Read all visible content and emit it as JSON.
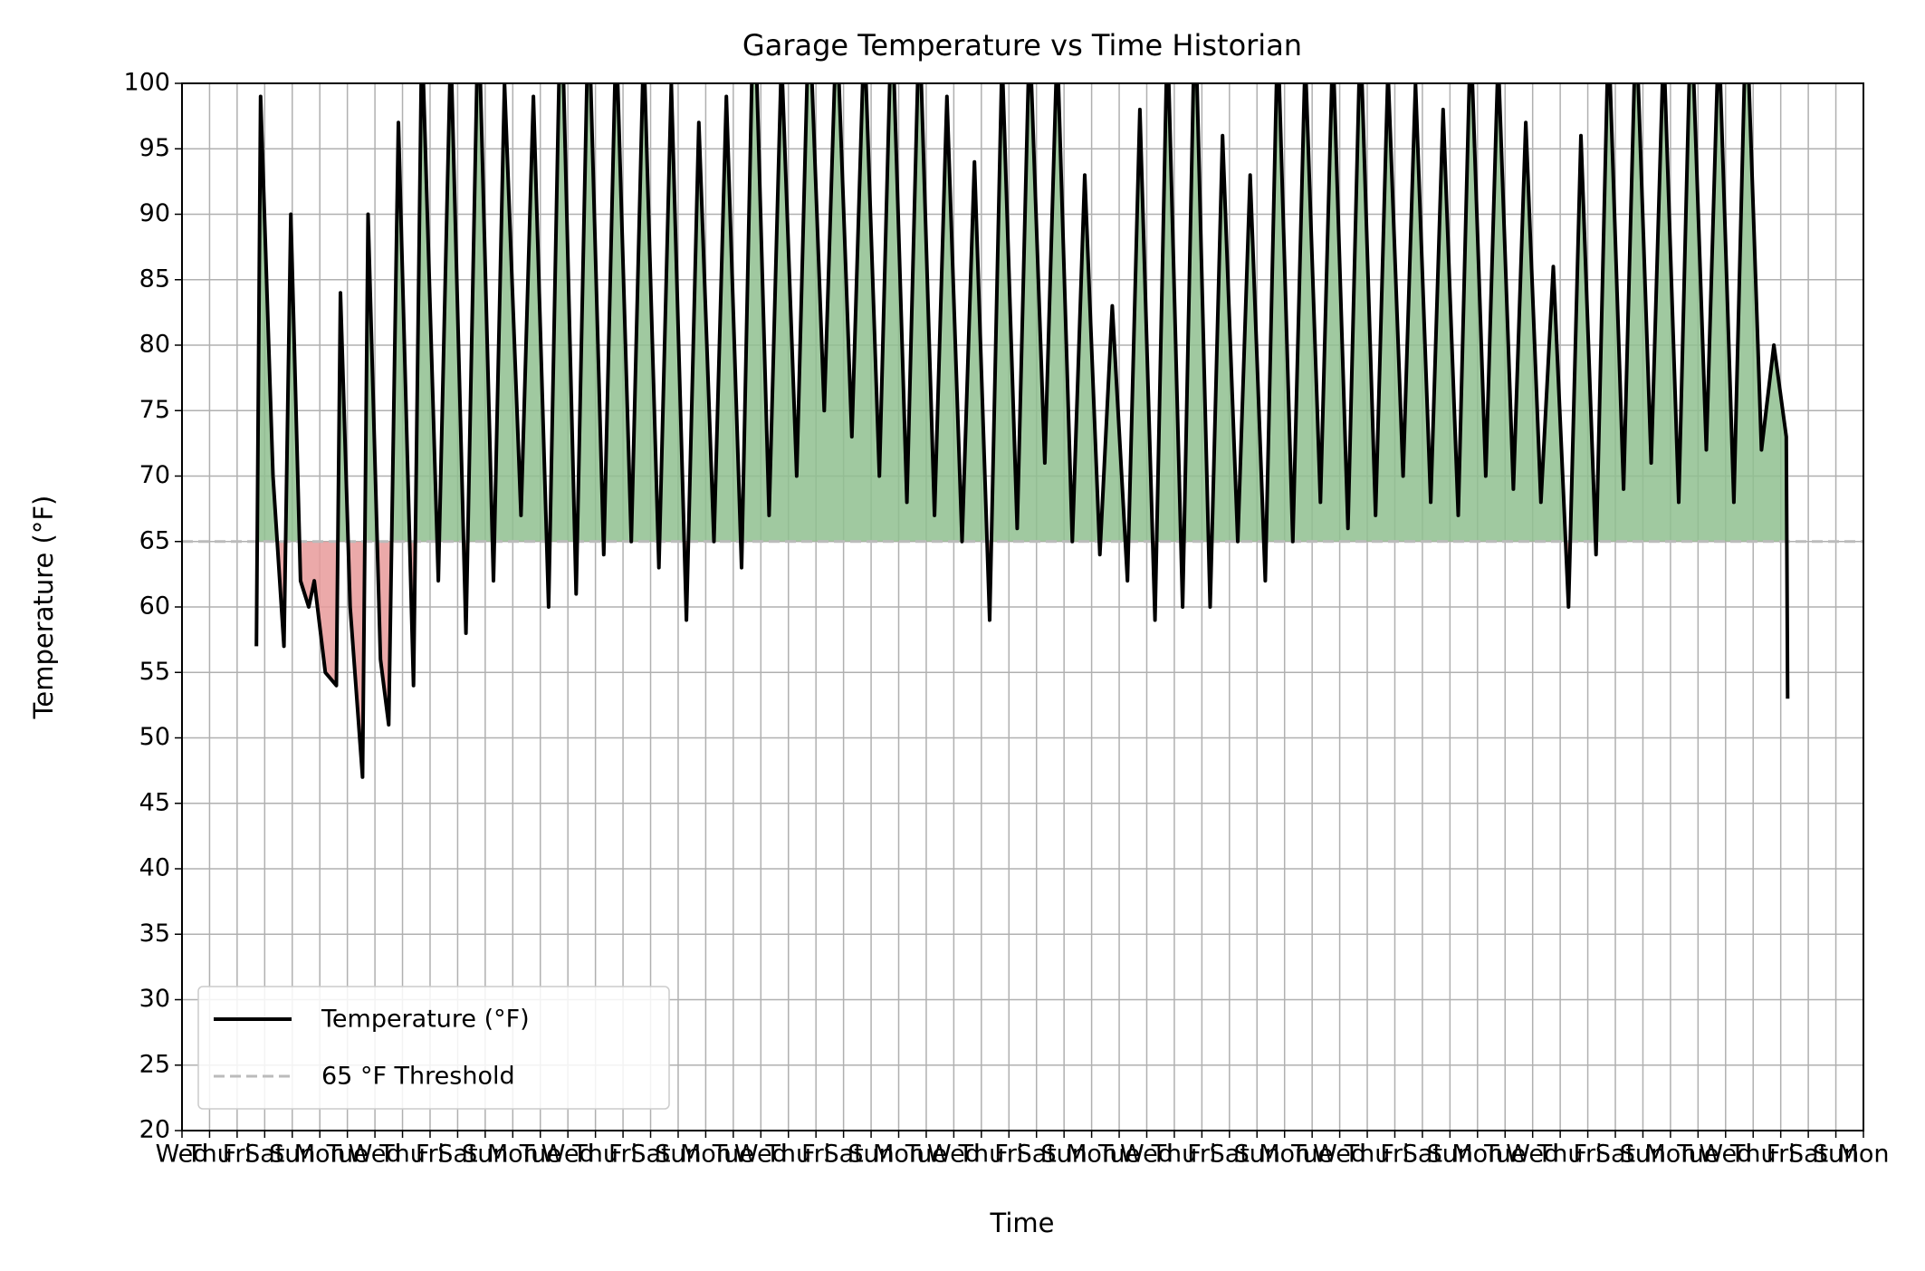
{
  "chart_data": {
    "type": "line",
    "title": "Garage Temperature vs Time Historian",
    "x_label": "Time",
    "y_label": "Temperature (°F)",
    "xlim": [
      0,
      61
    ],
    "xticks": [
      {
        "value": 0,
        "label": "Wed"
      },
      {
        "value": 1,
        "label": "Thu"
      },
      {
        "value": 2,
        "label": "Fri"
      },
      {
        "value": 3,
        "label": "Sat"
      },
      {
        "value": 4,
        "label": "Sun"
      },
      {
        "value": 5,
        "label": "Mon"
      },
      {
        "value": 6,
        "label": "Tue"
      },
      {
        "value": 7,
        "label": "Wed"
      },
      {
        "value": 8,
        "label": "Thu"
      },
      {
        "value": 9,
        "label": "Fri"
      },
      {
        "value": 10,
        "label": "Sat"
      },
      {
        "value": 11,
        "label": "Sun"
      },
      {
        "value": 12,
        "label": "Mon"
      },
      {
        "value": 13,
        "label": "Tue"
      },
      {
        "value": 14,
        "label": "Wed"
      },
      {
        "value": 15,
        "label": "Thu"
      },
      {
        "value": 16,
        "label": "Fri"
      },
      {
        "value": 17,
        "label": "Sat"
      },
      {
        "value": 18,
        "label": "Sun"
      },
      {
        "value": 19,
        "label": "Mon"
      },
      {
        "value": 20,
        "label": "Tue"
      },
      {
        "value": 21,
        "label": "Wed"
      },
      {
        "value": 22,
        "label": "Thu"
      },
      {
        "value": 23,
        "label": "Fri"
      },
      {
        "value": 24,
        "label": "Sat"
      },
      {
        "value": 25,
        "label": "Sun"
      },
      {
        "value": 26,
        "label": "Mon"
      },
      {
        "value": 27,
        "label": "Tue"
      },
      {
        "value": 28,
        "label": "Wed"
      },
      {
        "value": 29,
        "label": "Thu"
      },
      {
        "value": 30,
        "label": "Fri"
      },
      {
        "value": 31,
        "label": "Sat"
      },
      {
        "value": 32,
        "label": "Sun"
      },
      {
        "value": 33,
        "label": "Mon"
      },
      {
        "value": 34,
        "label": "Tue"
      },
      {
        "value": 35,
        "label": "Wed"
      },
      {
        "value": 36,
        "label": "Thu"
      },
      {
        "value": 37,
        "label": "Fri"
      },
      {
        "value": 38,
        "label": "Sat"
      },
      {
        "value": 39,
        "label": "Sun"
      },
      {
        "value": 40,
        "label": "Mon"
      },
      {
        "value": 41,
        "label": "Tue"
      },
      {
        "value": 42,
        "label": "Wed"
      },
      {
        "value": 43,
        "label": "Thu"
      },
      {
        "value": 44,
        "label": "Fri"
      },
      {
        "value": 45,
        "label": "Sat"
      },
      {
        "value": 46,
        "label": "Sun"
      },
      {
        "value": 47,
        "label": "Mon"
      },
      {
        "value": 48,
        "label": "Tue"
      },
      {
        "value": 49,
        "label": "Wed"
      },
      {
        "value": 50,
        "label": "Thu"
      },
      {
        "value": 51,
        "label": "Fri"
      },
      {
        "value": 52,
        "label": "Sat"
      },
      {
        "value": 53,
        "label": "Sun"
      },
      {
        "value": 54,
        "label": "Mon"
      },
      {
        "value": 55,
        "label": "Tue"
      },
      {
        "value": 56,
        "label": "Wed"
      },
      {
        "value": 57,
        "label": "Thu"
      },
      {
        "value": 58,
        "label": "Fri"
      },
      {
        "value": 59,
        "label": "Sat"
      },
      {
        "value": 60,
        "label": "Sun"
      },
      {
        "value": 61,
        "label": "Mon"
      }
    ],
    "ylim": [
      20,
      100
    ],
    "yticks": [
      20,
      25,
      30,
      35,
      40,
      45,
      50,
      55,
      60,
      65,
      70,
      75,
      80,
      85,
      90,
      95,
      100
    ],
    "grid": true,
    "legend": "lower left",
    "threshold": 65,
    "threshold_name": "65 °F Threshold",
    "threshold_color": "#bbbbbb",
    "above_color": "#8fbf8f",
    "below_color": "#e89a9a",
    "series": [
      {
        "name": "Temperature (°F)",
        "color": "#000000",
        "x": [
          2.7,
          2.85,
          3.3,
          3.7,
          3.95,
          4.3,
          4.6,
          4.8,
          5.2,
          5.6,
          5.75,
          6.1,
          6.55,
          6.75,
          7.2,
          7.5,
          7.85,
          8.4,
          8.7,
          9.3,
          9.75,
          10.3,
          10.75,
          11.3,
          11.7,
          12.3,
          12.75,
          13.3,
          13.75,
          14.3,
          14.75,
          15.3,
          15.75,
          16.3,
          16.75,
          17.3,
          17.75,
          18.3,
          18.75,
          19.3,
          19.75,
          20.3,
          20.75,
          21.3,
          21.75,
          22.3,
          22.75,
          23.3,
          23.75,
          24.3,
          24.75,
          25.3,
          25.75,
          26.3,
          26.75,
          27.3,
          27.75,
          28.3,
          28.75,
          29.3,
          29.75,
          30.3,
          30.75,
          31.3,
          31.75,
          32.3,
          32.75,
          33.3,
          33.75,
          34.3,
          34.75,
          35.3,
          35.75,
          36.3,
          36.75,
          37.3,
          37.75,
          38.3,
          38.75,
          39.3,
          39.75,
          40.3,
          40.75,
          41.3,
          41.75,
          42.3,
          42.75,
          43.3,
          43.75,
          44.3,
          44.75,
          45.3,
          45.75,
          46.3,
          46.75,
          47.3,
          47.75,
          48.3,
          48.75,
          49.3,
          49.75,
          50.3,
          50.75,
          51.3,
          51.75,
          52.3,
          52.75,
          53.3,
          53.75,
          54.3,
          54.75,
          55.3,
          55.75,
          56.3,
          56.75,
          57.3,
          57.75,
          58.2,
          58.25
        ],
        "values": [
          57,
          99,
          70,
          57,
          90,
          62,
          60,
          62,
          55,
          54,
          84,
          60,
          47,
          90,
          56,
          51,
          97,
          54,
          104,
          62,
          103,
          58,
          106,
          62,
          100,
          67,
          99,
          60,
          108,
          61,
          106,
          64,
          104,
          65,
          103,
          63,
          100,
          59,
          97,
          65,
          99,
          63,
          108,
          67,
          102,
          70,
          106,
          75,
          105,
          73,
          104,
          70,
          106,
          68,
          105,
          67,
          99,
          65,
          94,
          59,
          102,
          66,
          104,
          71,
          103,
          65,
          93,
          64,
          83,
          62,
          98,
          59,
          104,
          60,
          106,
          60,
          96,
          65,
          93,
          62,
          104,
          65,
          102,
          68,
          103,
          66,
          104,
          67,
          101,
          70,
          100,
          68,
          98,
          67,
          104,
          70,
          102,
          69,
          97,
          68,
          86,
          60,
          96,
          64,
          104,
          69,
          105,
          71,
          103,
          68,
          106,
          72,
          104,
          68,
          106,
          72,
          80,
          73,
          53
        ]
      }
    ]
  }
}
